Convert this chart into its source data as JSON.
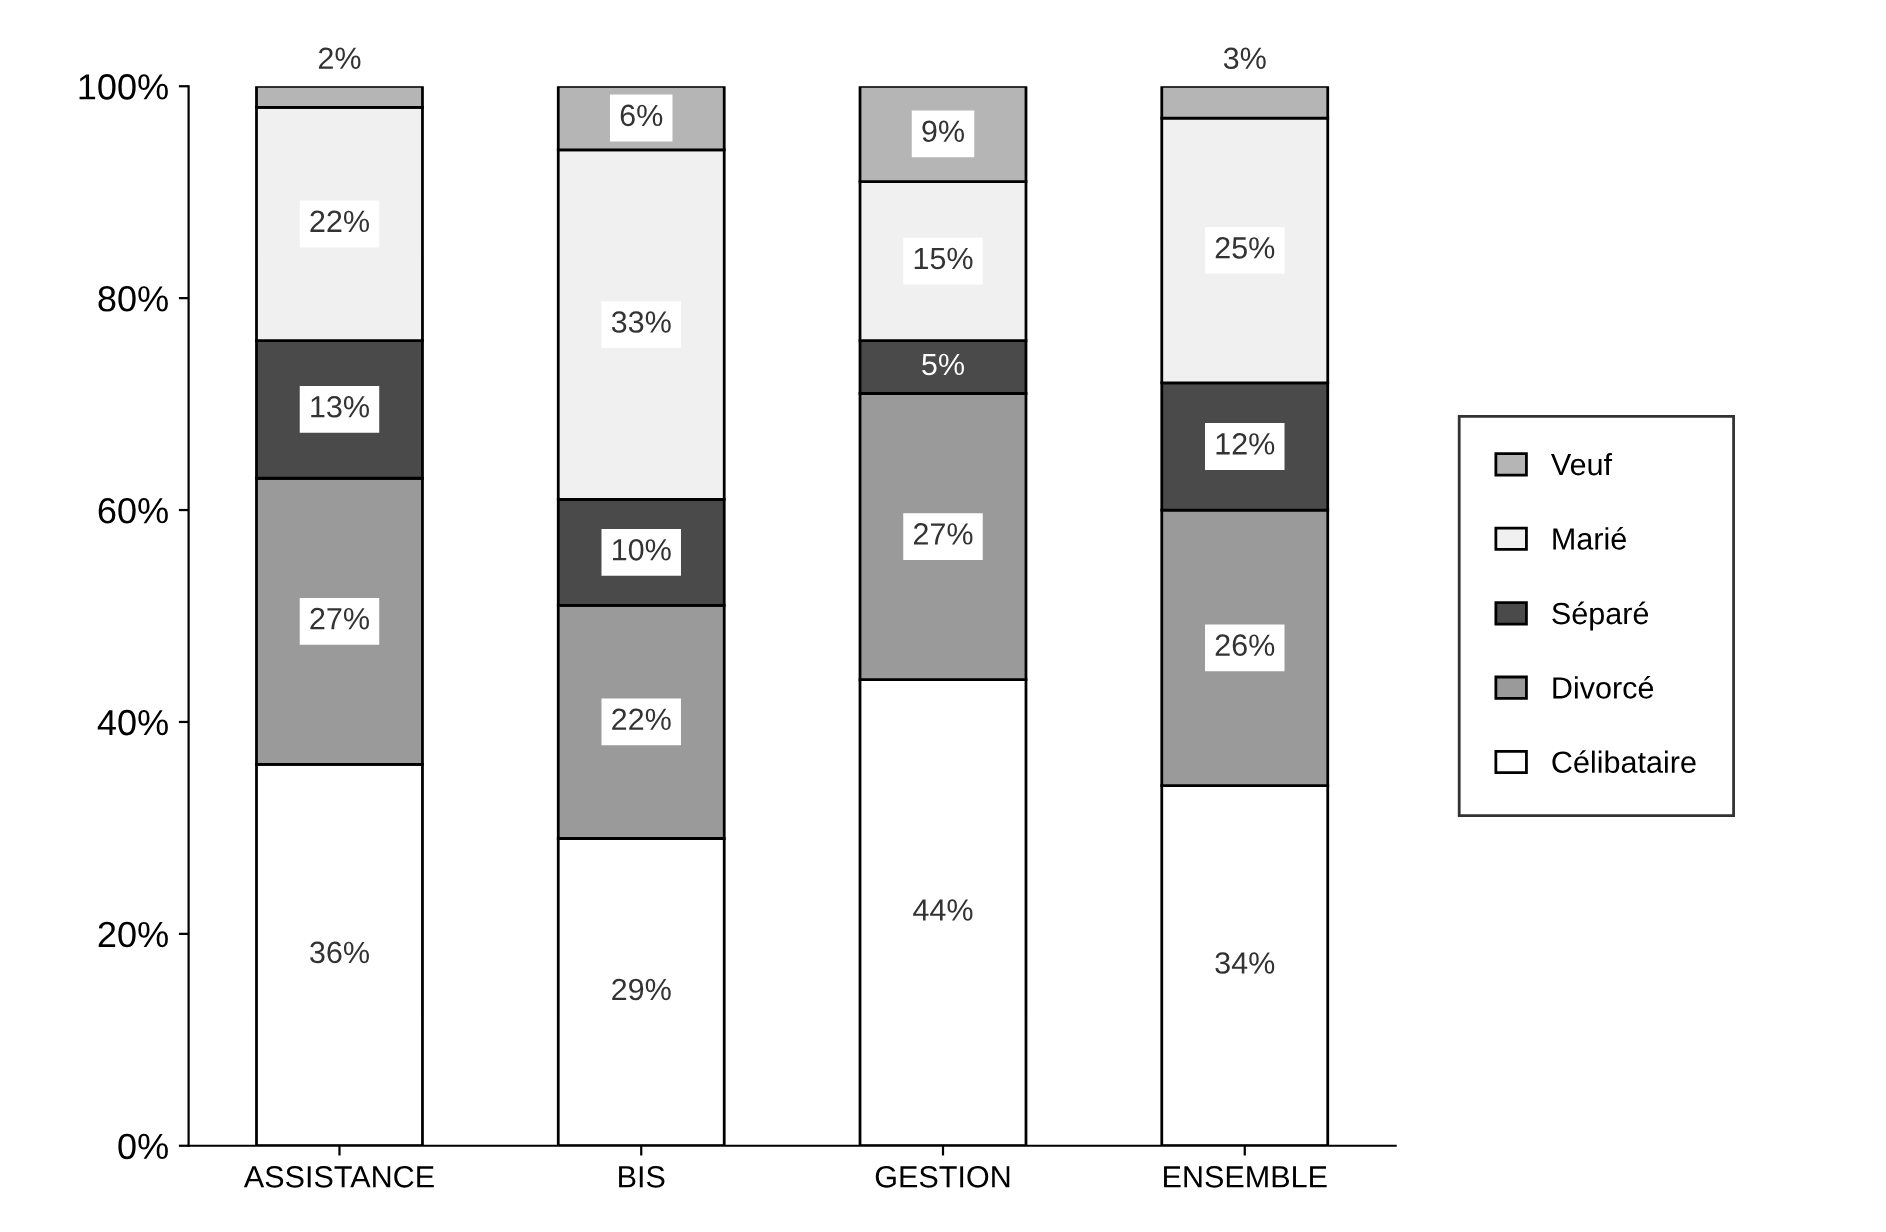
{
  "chart_data": {
    "type": "bar",
    "stacked": true,
    "categories": [
      "ASSISTANCE",
      "BIS",
      "GESTION",
      "ENSEMBLE"
    ],
    "ylim": [
      0,
      100
    ],
    "yticks": [
      {
        "value": 0,
        "label": "0%"
      },
      {
        "value": 20,
        "label": "20%"
      },
      {
        "value": 40,
        "label": "40%"
      },
      {
        "value": 60,
        "label": "60%"
      },
      {
        "value": 80,
        "label": "80%"
      },
      {
        "value": 100,
        "label": "100%"
      }
    ],
    "grid": false,
    "legend": "right",
    "series": [
      {
        "name": "Célibataire",
        "color": "#ffffff",
        "values": [
          36,
          29,
          44,
          34
        ],
        "value_labels": [
          "36%",
          "29%",
          "44%",
          "34%"
        ]
      },
      {
        "name": "Divorcé",
        "color": "#9a9a9a",
        "values": [
          27,
          22,
          27,
          26
        ],
        "value_labels": [
          "27%",
          "22%",
          "27%",
          "26%"
        ]
      },
      {
        "name": "Séparé",
        "color": "#4a4a4a",
        "values": [
          13,
          10,
          5,
          12
        ],
        "value_labels": [
          "13%",
          "10%",
          "5%",
          "12%"
        ]
      },
      {
        "name": "Marié",
        "color": "#f0f0f0",
        "values": [
          22,
          33,
          15,
          25
        ],
        "value_labels": [
          "22%",
          "33%",
          "15%",
          "25%"
        ]
      },
      {
        "name": "Veuf",
        "color": "#b5b5b5",
        "values": [
          2,
          6,
          9,
          3
        ],
        "value_labels": [
          "2%",
          "6%",
          "9%",
          "3%"
        ]
      }
    ]
  }
}
